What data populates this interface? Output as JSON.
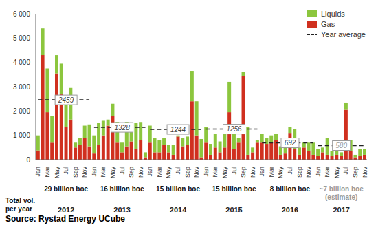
{
  "chart_data": {
    "type": "bar",
    "stacked": true,
    "grid": false,
    "legend": "upper right",
    "categories": [
      "Jan",
      null,
      "Mar",
      null,
      "May",
      null,
      "Jul",
      null,
      "Sep",
      null,
      "Nov",
      null,
      "Jan",
      null,
      "Mar",
      null,
      "May",
      null,
      "Jul",
      null,
      "Sep",
      null,
      "Nov",
      null,
      "Jan",
      null,
      "Mar",
      null,
      "May",
      null,
      "Jul",
      null,
      "Sep",
      null,
      "Nov",
      null,
      "Jan",
      null,
      "Mar",
      null,
      "May",
      null,
      "Jul",
      null,
      "Sep",
      null,
      "Nov",
      null,
      "Jan",
      null,
      "Mar",
      null,
      "May",
      null,
      "Jul",
      null,
      "Sep",
      null,
      "Nov",
      null,
      "Jan",
      null,
      "Mar",
      null,
      "May",
      null,
      "Jul",
      null,
      "Sep",
      null,
      "Nov"
    ],
    "years": [
      "2012",
      "2013",
      "2014",
      "2015",
      "2016",
      "2017"
    ],
    "series": [
      {
        "name": "Liquids",
        "color": "#8cc63e",
        "values": [
          620,
          1100,
          1800,
          1100,
          750,
          1250,
          1250,
          1300,
          200,
          300,
          500,
          900,
          750,
          900,
          600,
          250,
          500,
          850,
          400,
          1000,
          550,
          1050,
          750,
          200,
          700,
          600,
          500,
          300,
          300,
          400,
          50,
          350,
          350,
          1250,
          1400,
          750,
          650,
          450,
          550,
          450,
          900,
          1250,
          600,
          200,
          150,
          1150,
          200,
          100,
          350,
          250,
          300,
          250,
          350,
          500,
          250,
          800,
          300,
          200,
          350,
          500,
          300,
          200,
          700,
          200,
          350,
          150,
          300,
          450,
          100,
          300,
          250
        ]
      },
      {
        "name": "Gas",
        "color": "#d0301f",
        "values": [
          380,
          4300,
          1950,
          700,
          3550,
          2700,
          1350,
          1650,
          500,
          600,
          900,
          550,
          250,
          600,
          1000,
          1400,
          1800,
          700,
          300,
          550,
          750,
          450,
          800,
          100,
          700,
          300,
          300,
          600,
          300,
          200,
          950,
          550,
          600,
          2400,
          1000,
          100,
          700,
          200,
          500,
          300,
          500,
          1950,
          450,
          700,
          3450,
          200,
          300,
          700,
          700,
          650,
          700,
          800,
          200,
          250,
          1100,
          450,
          200,
          500,
          350,
          200,
          150,
          300,
          200,
          150,
          200,
          150,
          2050,
          350,
          100,
          150,
          200
        ]
      }
    ],
    "year_average": {
      "name": "Year average",
      "color": "#222222",
      "line_style": "dashed",
      "values": [
        2459,
        1328,
        1244,
        1256,
        692,
        580
      ]
    },
    "ylim": [
      0,
      6000
    ],
    "yticks": [
      0,
      {
        "value": 1000,
        "label": "1 000"
      },
      {
        "value": 2000,
        "label": "2 000"
      },
      {
        "value": 3000,
        "label": "3 000"
      },
      {
        "value": 4000,
        "label": "4 000"
      },
      {
        "value": 5000,
        "label": "5 000"
      },
      {
        "value": 6000,
        "label": "6 000"
      }
    ],
    "total_label": [
      "Total vol.",
      "per year"
    ],
    "totals": [
      [
        "29 billion boe"
      ],
      [
        "16 billion boe"
      ],
      [
        "15 billion boe"
      ],
      [
        "15 billion boe"
      ],
      [
        "8 billion boe"
      ],
      [
        "~7 billion boe",
        "(estimate)"
      ]
    ],
    "source": "Source: Rystad Energy UCube"
  }
}
